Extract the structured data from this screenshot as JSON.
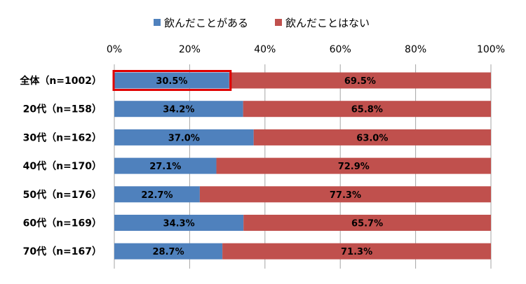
{
  "chart_data": {
    "type": "bar",
    "orientation": "horizontal",
    "stacked": true,
    "percent_stacked": true,
    "title": "",
    "xlabel": "",
    "ylabel": "",
    "xlim": [
      0,
      100
    ],
    "ticks": [
      "0%",
      "20%",
      "40%",
      "60%",
      "80%",
      "100%"
    ],
    "tick_values": [
      0,
      20,
      40,
      60,
      80,
      100
    ],
    "grid": true,
    "legend_position": "top",
    "categories": [
      "全体（n=1002）",
      "20代（n=158）",
      "30代（n=162）",
      "40代（n=170）",
      "50代（n=176）",
      "60代（n=169）",
      "70代（n=167）"
    ],
    "series": [
      {
        "name": "飲んだことがある",
        "color": "#4f81bd",
        "values": [
          30.5,
          34.2,
          37.0,
          27.1,
          22.7,
          34.3,
          28.7
        ],
        "labels": [
          "30.5%",
          "34.2%",
          "37.0%",
          "27.1%",
          "22.7%",
          "34.3%",
          "28.7%"
        ]
      },
      {
        "name": "飲んだことはない",
        "color": "#c0504d",
        "values": [
          69.5,
          65.8,
          63.0,
          72.9,
          77.3,
          65.7,
          71.3
        ],
        "labels": [
          "69.5%",
          "65.8%",
          "63.0%",
          "72.9%",
          "77.3%",
          "65.7%",
          "71.3%"
        ]
      }
    ],
    "highlight": {
      "category_index": 0,
      "series_index": 0,
      "color": "#e00000"
    }
  }
}
